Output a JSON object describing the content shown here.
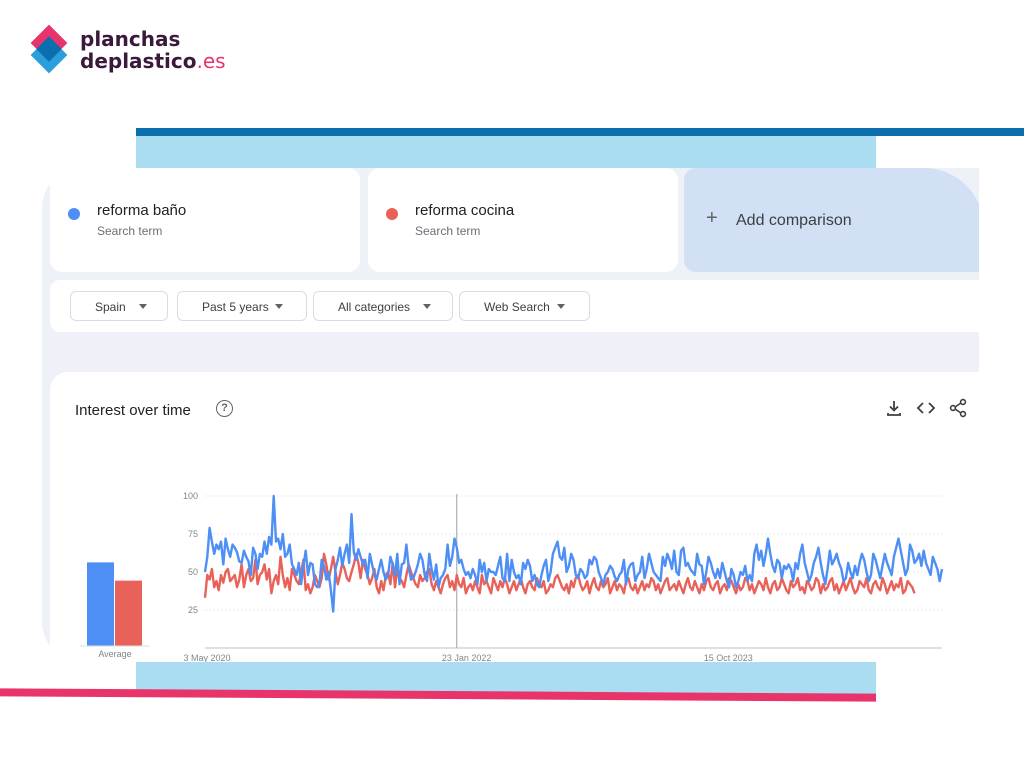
{
  "brand": {
    "name_line1": "planchas",
    "name_line2": "deplastico",
    "tld": ".es",
    "colors": {
      "pink": "#e8336b",
      "blue": "#2b9fdc",
      "dark_blue": "#0b6fae",
      "light_blue": "#aadcf2"
    }
  },
  "search_terms": [
    {
      "label": "reforma baño",
      "type": "Search term",
      "color": "#4e8ff5"
    },
    {
      "label": "reforma cocina",
      "type": "Search term",
      "color": "#e8625a"
    }
  ],
  "add_comparison": {
    "icon": "plus-icon",
    "label": "Add comparison"
  },
  "filters": [
    {
      "label": "Spain"
    },
    {
      "label": "Past 5 years"
    },
    {
      "label": "All categories"
    },
    {
      "label": "Web Search"
    }
  ],
  "interest_panel": {
    "title": "Interest over time",
    "help_icon": "help-circle-icon",
    "toolbar": [
      "download-icon",
      "embed-code-icon",
      "share-icon"
    ]
  },
  "chart_data": {
    "type": "line",
    "y_ticks": [
      "100",
      "75",
      "50",
      "25"
    ],
    "ylim": [
      0,
      100
    ],
    "x_tick_labels": [
      "3 May 2020",
      "23 Jan 2022",
      "15 Oct 2023"
    ],
    "average": {
      "label": "Average",
      "values": [
        55,
        43
      ]
    },
    "note_marker": "note",
    "series": [
      {
        "color": "#4e8ff5",
        "values": [
          50,
          60,
          79,
          70,
          62,
          68,
          65,
          70,
          55,
          72,
          65,
          60,
          68,
          66,
          63,
          57,
          56,
          64,
          60,
          57,
          48,
          66,
          62,
          52,
          62,
          60,
          70,
          62,
          73,
          68,
          100,
          70,
          72,
          65,
          75,
          60,
          62,
          68,
          55,
          52,
          48,
          56,
          42,
          54,
          64,
          48,
          56,
          55,
          42,
          40,
          42,
          58,
          54,
          45,
          50,
          38,
          24,
          52,
          58,
          66,
          54,
          62,
          68,
          56,
          88,
          63,
          58,
          65,
          60,
          55,
          58,
          46,
          62,
          55,
          48,
          45,
          52,
          58,
          50,
          45,
          48,
          60,
          55,
          48,
          62,
          42,
          55,
          56,
          68,
          53,
          45,
          46,
          50,
          55,
          62,
          58,
          48,
          44,
          62,
          52,
          45,
          55,
          40,
          46,
          48,
          52,
          68,
          54,
          60,
          72,
          66,
          56,
          58,
          52,
          48,
          50,
          46,
          52,
          48,
          42,
          58,
          50,
          56,
          44,
          52,
          50,
          50,
          48,
          54,
          60,
          46,
          44,
          62,
          44,
          58,
          50,
          46,
          48,
          42,
          56,
          52,
          58,
          54,
          44,
          48,
          42,
          40,
          48,
          54,
          58,
          44,
          50,
          62,
          66,
          70,
          60,
          58,
          66,
          50,
          54,
          62,
          58,
          48,
          46,
          52,
          50,
          46,
          48,
          58,
          55,
          60,
          58,
          50,
          46,
          42,
          48,
          50,
          54,
          52,
          47,
          44,
          48,
          50,
          58,
          42,
          52,
          55,
          56,
          44,
          48,
          50,
          60,
          46,
          52,
          62,
          56,
          50,
          48,
          46,
          44,
          60,
          54,
          62,
          58,
          52,
          64,
          50,
          48,
          64,
          66,
          54,
          56,
          52,
          50,
          48,
          62,
          55,
          54,
          42,
          50,
          60,
          56,
          50,
          46,
          52,
          46,
          56,
          50,
          44,
          40,
          52,
          48,
          40,
          44,
          50,
          48,
          54,
          44,
          48,
          44,
          62,
          68,
          58,
          64,
          54,
          62,
          72,
          62,
          54,
          50,
          58,
          56,
          46,
          54,
          52,
          55,
          52,
          44,
          56,
          52,
          62,
          68,
          56,
          50,
          44,
          48,
          56,
          60,
          66,
          56,
          48,
          42,
          52,
          64,
          55,
          58,
          62,
          56,
          52,
          44,
          46,
          56,
          50,
          46,
          54,
          48,
          56,
          62,
          58,
          50,
          44,
          48,
          62,
          58,
          52,
          46,
          54,
          62,
          56,
          52,
          48,
          60,
          66,
          72,
          64,
          56,
          48,
          52,
          68,
          64,
          56,
          58,
          62,
          54,
          64,
          56,
          52,
          48,
          60,
          56,
          52,
          44,
          52
        ]
      },
      {
        "color": "#e8625a",
        "values": [
          33,
          48,
          45,
          52,
          40,
          44,
          38,
          48,
          43,
          50,
          52,
          44,
          46,
          48,
          40,
          45,
          55,
          40,
          48,
          52,
          44,
          46,
          58,
          42,
          48,
          50,
          55,
          45,
          52,
          36,
          44,
          48,
          42,
          60,
          48,
          40,
          46,
          38,
          52,
          48,
          44,
          42,
          50,
          58,
          38,
          42,
          36,
          40,
          48,
          44,
          40,
          46,
          62,
          55,
          45,
          52,
          60,
          50,
          42,
          48,
          56,
          52,
          46,
          44,
          50,
          55,
          62,
          56,
          46,
          58,
          52,
          48,
          42,
          46,
          52,
          40,
          36,
          44,
          38,
          48,
          50,
          42,
          56,
          40,
          52,
          46,
          44,
          40,
          48,
          55,
          50,
          46,
          42,
          40,
          48,
          44,
          46,
          50,
          52,
          42,
          38,
          44,
          40,
          36,
          42,
          46,
          48,
          40,
          44,
          38,
          48,
          42,
          40,
          46,
          36,
          40,
          42,
          38,
          44,
          40,
          36,
          48,
          42,
          44,
          40,
          36,
          46,
          42,
          38,
          44,
          40,
          46,
          42,
          36,
          40,
          44,
          38,
          42,
          46,
          40,
          36,
          42,
          44,
          40,
          38,
          46,
          42,
          40,
          44,
          36,
          38,
          42,
          40,
          46,
          48,
          44,
          40,
          38,
          42,
          36,
          44,
          40,
          46,
          48,
          42,
          38,
          40,
          44,
          36,
          42,
          46,
          40,
          38,
          44,
          40,
          42,
          46,
          36,
          40,
          44,
          38,
          42,
          40,
          36,
          44,
          46,
          40,
          38,
          42,
          36,
          40,
          44,
          38,
          42,
          40,
          46,
          44,
          38,
          42,
          36,
          40,
          44,
          46,
          38,
          40,
          42,
          38,
          44,
          40,
          36,
          42,
          46,
          40,
          38,
          44,
          40,
          36,
          42,
          38,
          44,
          46,
          40,
          38,
          42,
          44,
          36,
          40,
          42,
          38,
          46,
          44,
          40,
          36,
          42,
          38,
          40,
          46,
          44,
          38,
          42,
          36,
          40,
          44,
          42,
          38,
          46,
          40,
          36,
          42,
          44,
          38,
          40,
          46,
          42,
          38,
          36,
          44,
          40,
          42,
          46,
          38,
          40,
          36,
          44,
          42,
          38,
          40,
          46,
          44,
          36,
          42,
          38,
          40,
          44,
          46,
          38,
          42,
          36,
          40,
          44,
          38,
          42,
          46,
          40,
          36,
          38,
          44,
          42,
          40,
          46,
          38,
          36,
          42,
          44,
          40,
          38,
          46,
          42,
          36,
          40,
          44,
          38,
          42,
          40,
          46,
          36,
          38,
          44,
          42,
          40,
          36
        ]
      }
    ]
  }
}
